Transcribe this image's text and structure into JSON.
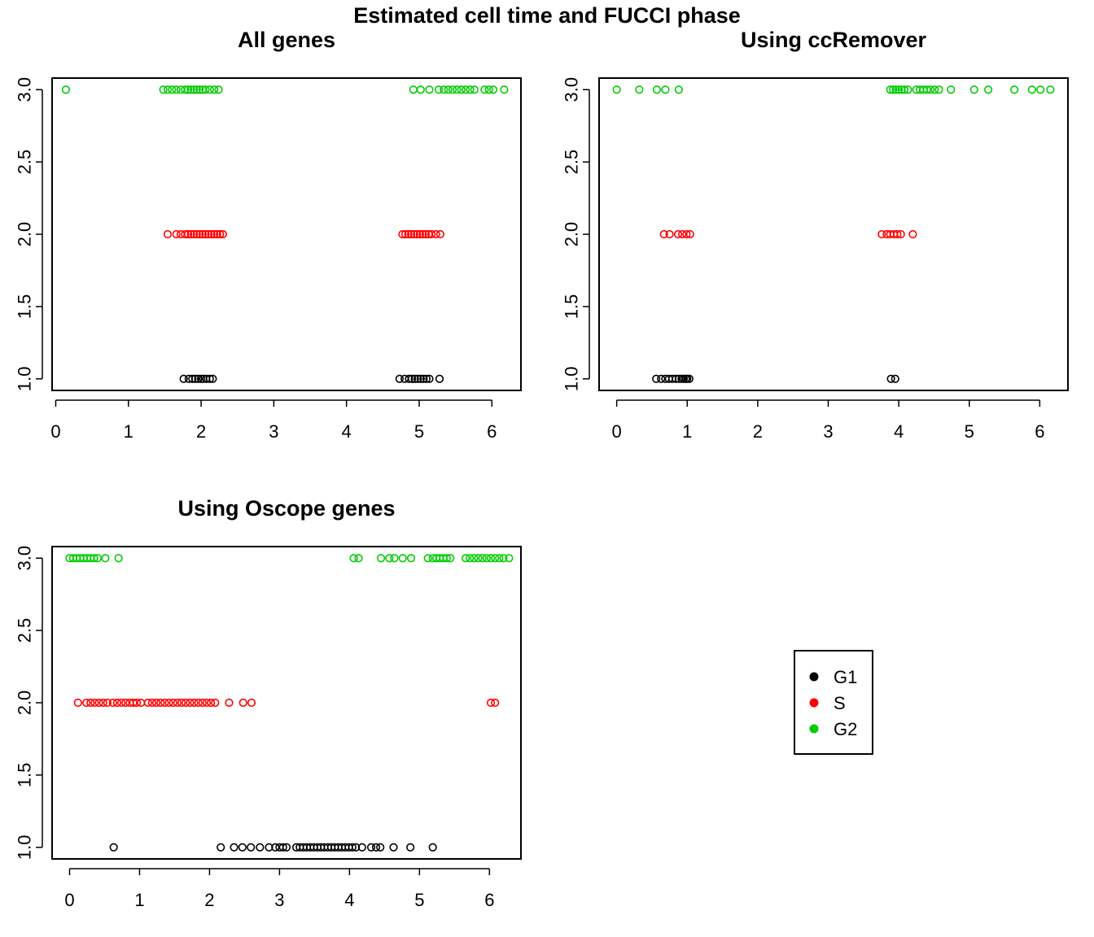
{
  "title": "Estimated cell time and FUCCI phase",
  "legend": [
    {
      "label": "G1",
      "color": "#000000"
    },
    {
      "label": "S",
      "color": "#FF0000"
    },
    {
      "label": "G2",
      "color": "#00CD00"
    }
  ],
  "chart_data": [
    {
      "type": "scatter",
      "title": "All genes",
      "xlabel": "",
      "ylabel": "",
      "xlim": [
        -0.05,
        6.4
      ],
      "ylim": [
        0.92,
        3.08
      ],
      "xticks": [
        "0",
        "1",
        "2",
        "3",
        "4",
        "5",
        "6"
      ],
      "yticks": [
        "1.0",
        "1.5",
        "2.0",
        "2.5",
        "3.0"
      ],
      "series": [
        {
          "name": "G1",
          "y": 1,
          "x": [
            1.76,
            1.83,
            1.88,
            1.92,
            1.96,
            2.0,
            2.03,
            2.07,
            2.12,
            2.16,
            4.73,
            4.8,
            4.86,
            4.9,
            4.94,
            4.98,
            5.02,
            5.06,
            5.1,
            5.14,
            5.28
          ]
        },
        {
          "name": "S",
          "y": 2,
          "x": [
            1.54,
            1.66,
            1.72,
            1.78,
            1.82,
            1.86,
            1.9,
            1.94,
            1.98,
            2.02,
            2.06,
            2.1,
            2.14,
            2.18,
            2.22,
            2.26,
            2.3,
            4.77,
            4.81,
            4.85,
            4.89,
            4.93,
            4.97,
            5.01,
            5.05,
            5.09,
            5.13,
            5.17,
            5.23,
            5.29
          ]
        },
        {
          "name": "G2",
          "y": 3,
          "x": [
            0.14,
            1.48,
            1.54,
            1.6,
            1.66,
            1.72,
            1.78,
            1.82,
            1.86,
            1.9,
            1.94,
            1.98,
            2.02,
            2.06,
            2.12,
            2.18,
            2.24,
            4.92,
            5.02,
            5.14,
            5.27,
            5.34,
            5.4,
            5.46,
            5.52,
            5.58,
            5.64,
            5.7,
            5.76,
            5.9,
            5.96,
            6.02,
            6.17
          ]
        }
      ]
    },
    {
      "type": "scatter",
      "title": "Using ccRemover",
      "xlabel": "",
      "ylabel": "",
      "xlim": [
        -0.25,
        6.4
      ],
      "ylim": [
        0.92,
        3.08
      ],
      "xticks": [
        "0",
        "1",
        "2",
        "3",
        "4",
        "5",
        "6"
      ],
      "yticks": [
        "1.0",
        "1.5",
        "2.0",
        "2.5",
        "3.0"
      ],
      "series": [
        {
          "name": "G1",
          "y": 1,
          "x": [
            0.56,
            0.63,
            0.69,
            0.74,
            0.79,
            0.84,
            0.88,
            0.92,
            0.95,
            0.98,
            1.0,
            1.03,
            3.89,
            3.95
          ]
        },
        {
          "name": "S",
          "y": 2,
          "x": [
            0.67,
            0.75,
            0.87,
            0.93,
            0.99,
            1.04,
            3.76,
            3.83,
            3.88,
            3.93,
            3.98,
            4.03,
            4.2
          ]
        },
        {
          "name": "G2",
          "y": 3,
          "x": [
            0.0,
            0.32,
            0.57,
            0.69,
            0.88,
            3.88,
            3.92,
            3.96,
            4.0,
            4.04,
            4.08,
            4.13,
            4.25,
            4.3,
            4.35,
            4.4,
            4.45,
            4.51,
            4.57,
            4.74,
            5.07,
            5.27,
            5.64,
            5.89,
            6.01,
            6.15
          ]
        }
      ]
    },
    {
      "type": "scatter",
      "title": "Using Oscope genes",
      "xlabel": "",
      "ylabel": "",
      "xlim": [
        -0.25,
        6.45
      ],
      "ylim": [
        0.92,
        3.08
      ],
      "xticks": [
        "0",
        "1",
        "2",
        "3",
        "4",
        "5",
        "6"
      ],
      "yticks": [
        "1.0",
        "1.5",
        "2.0",
        "2.5",
        "3.0"
      ],
      "series": [
        {
          "name": "G1",
          "y": 1,
          "x": [
            0.63,
            2.16,
            2.35,
            2.47,
            2.59,
            2.72,
            2.85,
            2.94,
            3.0,
            3.05,
            3.1,
            3.24,
            3.29,
            3.34,
            3.39,
            3.44,
            3.49,
            3.54,
            3.59,
            3.64,
            3.69,
            3.74,
            3.79,
            3.84,
            3.89,
            3.94,
            3.99,
            4.04,
            4.09,
            4.18,
            4.31,
            4.38,
            4.44,
            4.63,
            4.87,
            5.19
          ]
        },
        {
          "name": "S",
          "y": 2,
          "x": [
            0.12,
            0.24,
            0.3,
            0.36,
            0.42,
            0.48,
            0.54,
            0.62,
            0.68,
            0.74,
            0.8,
            0.86,
            0.91,
            0.96,
            1.02,
            1.12,
            1.18,
            1.24,
            1.3,
            1.36,
            1.42,
            1.48,
            1.54,
            1.6,
            1.66,
            1.72,
            1.78,
            1.84,
            1.9,
            1.96,
            2.02,
            2.08,
            2.28,
            2.48,
            2.6,
            6.02,
            6.08
          ]
        },
        {
          "name": "G2",
          "y": 3,
          "x": [
            0.0,
            0.05,
            0.1,
            0.15,
            0.2,
            0.25,
            0.3,
            0.35,
            0.4,
            0.51,
            0.7,
            4.06,
            4.13,
            4.45,
            4.57,
            4.64,
            4.76,
            4.88,
            5.12,
            5.19,
            5.24,
            5.29,
            5.34,
            5.39,
            5.44,
            5.66,
            5.72,
            5.78,
            5.84,
            5.9,
            5.96,
            6.02,
            6.08,
            6.14,
            6.2,
            6.28
          ]
        }
      ]
    }
  ]
}
